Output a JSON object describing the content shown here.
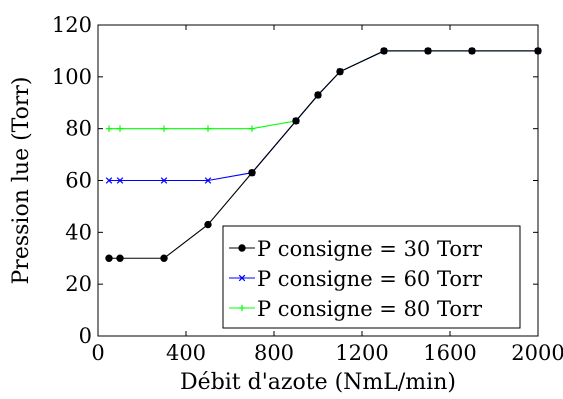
{
  "chart_data": {
    "type": "line",
    "xlabel": "Débit d'azote (NmL/min)",
    "ylabel": "Pression lue (Torr)",
    "xlim": [
      0,
      2000
    ],
    "ylim": [
      0,
      120
    ],
    "xticks": [
      0,
      400,
      800,
      1200,
      1600,
      2000
    ],
    "yticks": [
      0,
      20,
      40,
      60,
      80,
      100,
      120
    ],
    "grid": false,
    "legend_position": "bottom-right",
    "series": [
      {
        "name": "P consigne = 30 Torr",
        "color": "#000000",
        "marker": "circle",
        "x": [
          50,
          100,
          300,
          500,
          700,
          900,
          1000,
          1100,
          1300,
          1500,
          1700,
          2000
        ],
        "y": [
          30,
          30,
          30,
          43,
          63,
          83,
          93,
          102,
          110,
          110,
          110,
          110
        ]
      },
      {
        "name": "P consigne = 60 Torr",
        "color": "#0000ff",
        "marker": "x",
        "x": [
          50,
          100,
          300,
          500,
          700,
          900,
          1000,
          1100,
          1300,
          1500,
          1700,
          2000
        ],
        "y": [
          60,
          60,
          60,
          60,
          63,
          83,
          93,
          102,
          110,
          110,
          110,
          110
        ]
      },
      {
        "name": "P consigne = 80 Torr",
        "color": "#00ff00",
        "marker": "plus",
        "x": [
          50,
          100,
          300,
          500,
          700,
          900,
          1000,
          1100,
          1300,
          1500,
          1700,
          2000
        ],
        "y": [
          80,
          80,
          80,
          80,
          80,
          83,
          93,
          102,
          110,
          110,
          110,
          110
        ]
      }
    ]
  }
}
